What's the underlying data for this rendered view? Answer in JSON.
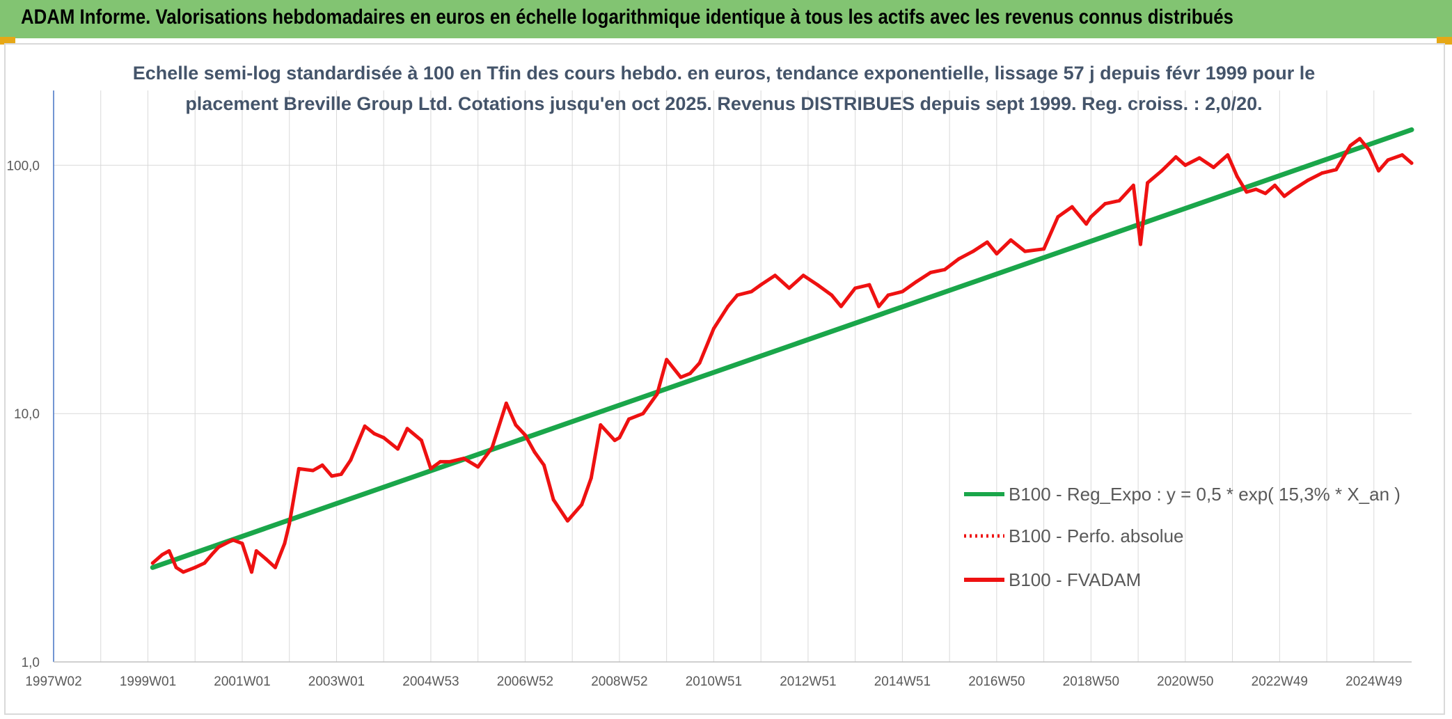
{
  "header": {
    "title": "ADAM Informe. Valorisations hebdomadaires en euros en échelle logarithmique identique à tous les actifs avec les revenus connus distribués"
  },
  "colors": {
    "header_bg": "#82c472",
    "corner_accent": "#e6a817",
    "regression": "#1aa64a",
    "fvadam": "#ee1111",
    "perfo": "#ee1111",
    "grid": "#d9d9d9",
    "title_text": "#44546a"
  },
  "chart_data": {
    "type": "line",
    "title_lines": [
      "Echelle semi-log standardisée à 100 en Tfin des cours hebdo. en euros, tendance exponentielle, lissage 57 j depuis févr 1999 pour le",
      "placement Breville Group Ltd. Cotations jusqu'en oct 2025. Revenus DISTRIBUES depuis sept 1999. Reg. croiss. : 2,0/20."
    ],
    "y_scale": "log",
    "ylim": [
      1,
      200
    ],
    "y_ticks": [
      {
        "value": 1,
        "label": "1,0"
      },
      {
        "value": 10,
        "label": "10,0"
      },
      {
        "value": 100,
        "label": "100,0"
      }
    ],
    "xlim": [
      1997.0,
      2025.8
    ],
    "x_ticks": [
      {
        "value": 1997.0,
        "label": "1997W02"
      },
      {
        "value": 1999.0,
        "label": "1999W01"
      },
      {
        "value": 2001.0,
        "label": "2001W01"
      },
      {
        "value": 2003.0,
        "label": "2003W01"
      },
      {
        "value": 2005.0,
        "label": "2004W53"
      },
      {
        "value": 2007.0,
        "label": "2006W52"
      },
      {
        "value": 2009.0,
        "label": "2008W52"
      },
      {
        "value": 2011.0,
        "label": "2010W51"
      },
      {
        "value": 2013.0,
        "label": "2012W51"
      },
      {
        "value": 2015.0,
        "label": "2014W51"
      },
      {
        "value": 2017.0,
        "label": "2016W50"
      },
      {
        "value": 2019.0,
        "label": "2018W50"
      },
      {
        "value": 2021.0,
        "label": "2020W50"
      },
      {
        "value": 2023.0,
        "label": "2022W49"
      },
      {
        "value": 2025.0,
        "label": "2024W49"
      }
    ],
    "grid": true,
    "legend_position": "bottom-right",
    "series": [
      {
        "name": "B100 - Reg_Expo : y = 0,5 * exp( 15,3% *  X_an )",
        "style": "solid-thick",
        "color": "#1aa64a",
        "x": [
          1999.1,
          2025.8
        ],
        "y": [
          2.4,
          139
        ]
      },
      {
        "name": "B100 - Perfo. absolue",
        "style": "dotted",
        "color": "#ee1111",
        "x": [],
        "y": []
      },
      {
        "name": "B100 - FVADAM",
        "style": "solid",
        "color": "#ee1111",
        "x": [
          1999.1,
          1999.3,
          1999.45,
          1999.6,
          1999.75,
          2000.0,
          2000.2,
          2000.35,
          2000.5,
          2000.8,
          2001.0,
          2001.2,
          2001.3,
          2001.5,
          2001.7,
          2001.9,
          2002.0,
          2002.2,
          2002.5,
          2002.7,
          2002.9,
          2003.1,
          2003.3,
          2003.6,
          2003.8,
          2004.0,
          2004.3,
          2004.5,
          2004.8,
          2005.0,
          2005.2,
          2005.4,
          2005.7,
          2006.0,
          2006.3,
          2006.6,
          2006.8,
          2007.0,
          2007.2,
          2007.4,
          2007.6,
          2007.9,
          2008.2,
          2008.4,
          2008.6,
          2008.9,
          2009.0,
          2009.2,
          2009.5,
          2009.8,
          2009.85,
          2010.0,
          2010.3,
          2010.5,
          2010.7,
          2011.0,
          2011.3,
          2011.5,
          2011.8,
          2012.0,
          2012.3,
          2012.6,
          2012.9,
          2013.2,
          2013.5,
          2013.7,
          2014.0,
          2014.3,
          2014.5,
          2014.7,
          2015.0,
          2015.3,
          2015.6,
          2015.9,
          2016.2,
          2016.5,
          2016.8,
          2017.0,
          2017.3,
          2017.6,
          2018.0,
          2018.3,
          2018.6,
          2018.9,
          2019.0,
          2019.3,
          2019.6,
          2019.9,
          2020.05,
          2020.2,
          2020.5,
          2020.8,
          2021.0,
          2021.3,
          2021.6,
          2021.9,
          2022.1,
          2022.3,
          2022.5,
          2022.7,
          2022.9,
          2023.1,
          2023.3,
          2023.6,
          2023.9,
          2024.2,
          2024.5,
          2024.7,
          2024.9,
          2025.1,
          2025.3,
          2025.6,
          2025.8
        ],
        "y": [
          2.5,
          2.7,
          2.8,
          2.4,
          2.3,
          2.4,
          2.5,
          2.7,
          2.9,
          3.1,
          3.0,
          2.3,
          2.8,
          2.6,
          2.4,
          3.0,
          3.6,
          6.0,
          5.9,
          6.2,
          5.6,
          5.7,
          6.5,
          8.9,
          8.3,
          8.0,
          7.2,
          8.7,
          7.8,
          6.0,
          6.4,
          6.4,
          6.6,
          6.1,
          7.3,
          11.0,
          9.0,
          8.2,
          7.0,
          6.2,
          4.5,
          3.7,
          4.3,
          5.5,
          9.0,
          7.8,
          8.0,
          9.5,
          10.0,
          12.0,
          13.0,
          16.5,
          14.0,
          14.5,
          16.0,
          22.0,
          27.0,
          30.0,
          31.0,
          33.0,
          36.0,
          32.0,
          36.0,
          33.0,
          30.0,
          27.0,
          32.0,
          33.0,
          27.0,
          30.0,
          31.0,
          34.0,
          37.0,
          38.0,
          42.0,
          45.0,
          49.0,
          44.0,
          50.0,
          45.0,
          46.0,
          62.0,
          68.0,
          58.0,
          62.0,
          70.0,
          72.0,
          83.0,
          48.0,
          85.0,
          95.0,
          108.0,
          100.0,
          107.0,
          98.0,
          110.0,
          90.0,
          78.0,
          80.0,
          77.0,
          83.0,
          75.0,
          80.0,
          87.0,
          93.0,
          96.0,
          120.0,
          128.0,
          115.0,
          95.0,
          105.0,
          110.0,
          102.0
        ]
      }
    ]
  }
}
